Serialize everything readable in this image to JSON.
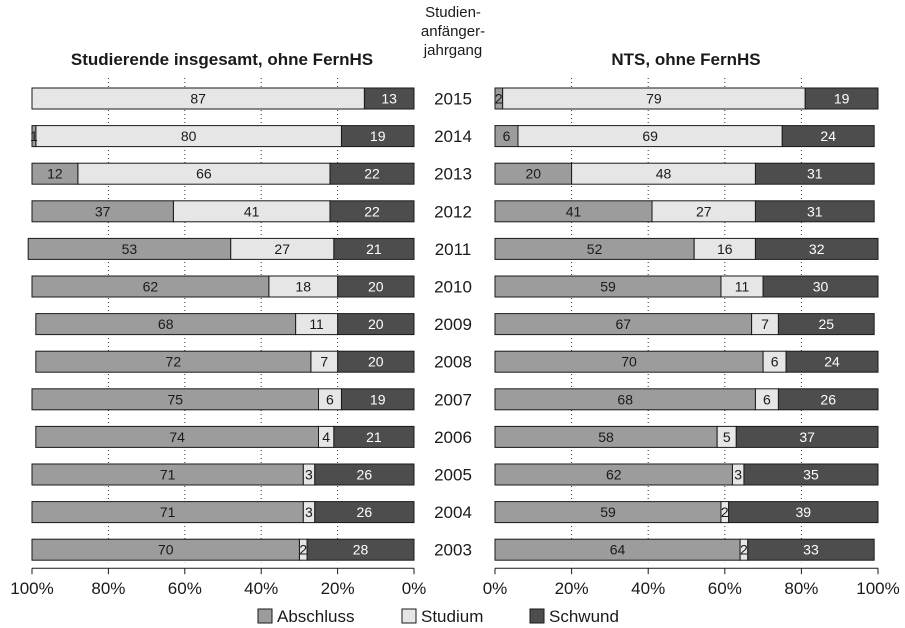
{
  "header": {
    "left_title": "Studierende insgesamt, ohne FernHS",
    "right_title": "NTS, ohne FernHS",
    "center_title_lines": [
      "Studien-",
      "anfänger-",
      "jahrgang"
    ]
  },
  "legend": [
    {
      "key": "abschluss",
      "label": "Abschluss",
      "color": "#9c9c9c"
    },
    {
      "key": "studium",
      "label": "Studium",
      "color": "#e6e6e6"
    },
    {
      "key": "schwund",
      "label": "Schwund",
      "color": "#4d4d4d"
    }
  ],
  "chart_data": [
    {
      "type": "bar",
      "orientation": "horizontal-stacked",
      "title": "Studierende insgesamt, ohne FernHS",
      "categories": [
        "2015",
        "2014",
        "2013",
        "2012",
        "2011",
        "2010",
        "2009",
        "2008",
        "2007",
        "2006",
        "2005",
        "2004",
        "2003"
      ],
      "series": [
        {
          "name": "Schwund",
          "values": [
            13,
            19,
            22,
            22,
            21,
            20,
            20,
            20,
            19,
            21,
            26,
            26,
            28
          ]
        },
        {
          "name": "Studium",
          "values": [
            87,
            80,
            66,
            41,
            27,
            18,
            11,
            7,
            6,
            4,
            3,
            3,
            2
          ]
        },
        {
          "name": "Abschluss",
          "values": [
            0,
            1,
            12,
            37,
            53,
            62,
            68,
            72,
            75,
            74,
            71,
            71,
            70
          ]
        }
      ],
      "xlim": [
        100,
        0
      ],
      "ticks": [
        "100%",
        "80%",
        "60%",
        "40%",
        "20%",
        "0%"
      ],
      "grid": true
    },
    {
      "type": "bar",
      "orientation": "horizontal-stacked",
      "title": "NTS, ohne FernHS",
      "categories": [
        "2015",
        "2014",
        "2013",
        "2012",
        "2011",
        "2010",
        "2009",
        "2008",
        "2007",
        "2006",
        "2005",
        "2004",
        "2003"
      ],
      "series": [
        {
          "name": "Abschluss",
          "values": [
            2,
            6,
            20,
            41,
            52,
            59,
            67,
            70,
            68,
            58,
            62,
            59,
            64
          ]
        },
        {
          "name": "Studium",
          "values": [
            79,
            69,
            48,
            27,
            16,
            11,
            7,
            6,
            6,
            5,
            3,
            2,
            2
          ]
        },
        {
          "name": "Schwund",
          "values": [
            19,
            24,
            31,
            31,
            32,
            30,
            25,
            24,
            26,
            37,
            35,
            39,
            33
          ]
        }
      ],
      "xlim": [
        0,
        100
      ],
      "ticks": [
        "0%",
        "20%",
        "40%",
        "60%",
        "80%",
        "100%"
      ],
      "grid": true
    }
  ]
}
